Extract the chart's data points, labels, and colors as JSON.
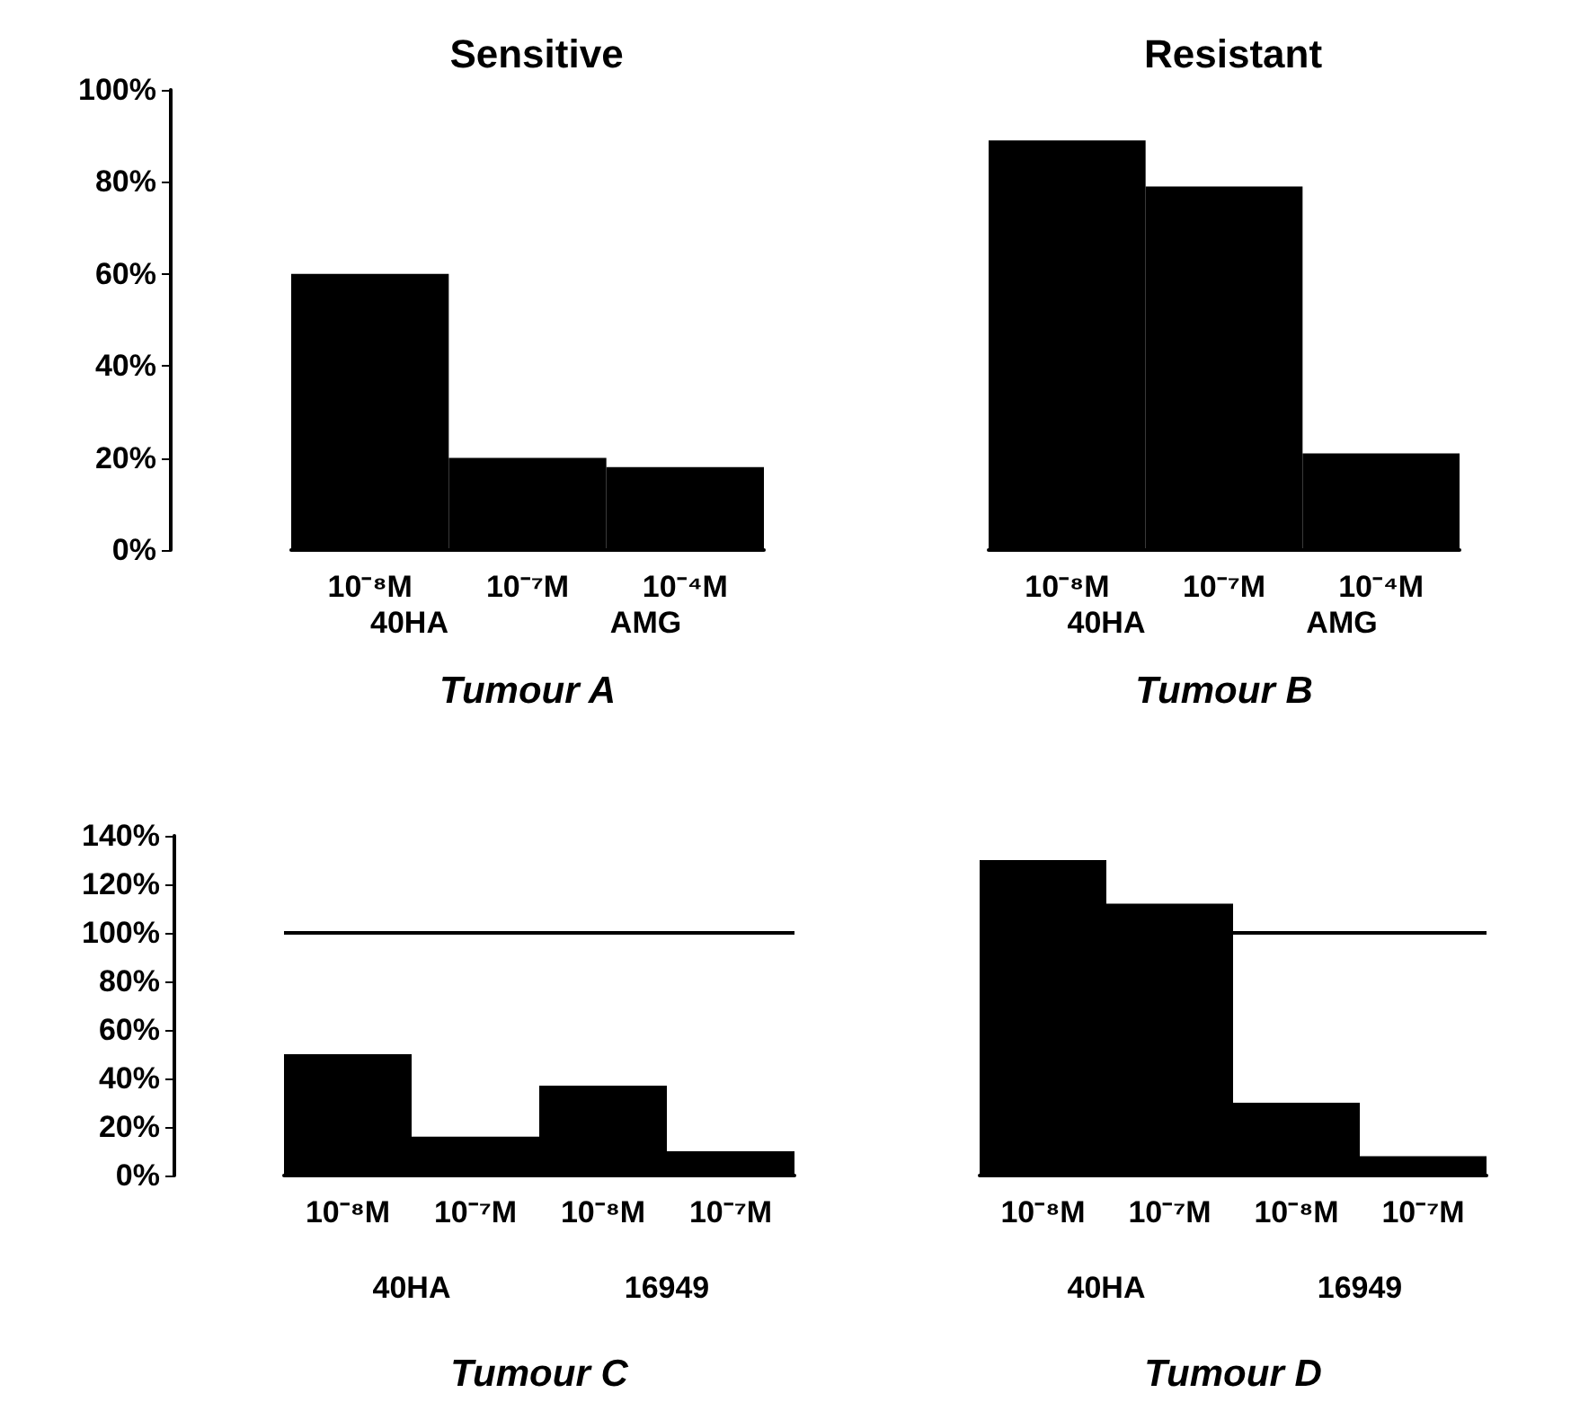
{
  "chart_data": [
    {
      "type": "bar",
      "title": "Sensitive",
      "xlabel": "Tumour A",
      "categories": [
        "10⁻⁸M",
        "10⁻⁷M",
        "10⁻⁴M"
      ],
      "values": [
        60,
        20,
        18
      ],
      "color": "#000000",
      "ylim": [
        0,
        100
      ],
      "yticks": [
        {
          "value": 0,
          "label": "0%"
        },
        {
          "value": 20,
          "label": "20%"
        },
        {
          "value": 40,
          "label": "40%"
        },
        {
          "value": 60,
          "label": "60%"
        },
        {
          "value": 80,
          "label": "80%"
        },
        {
          "value": 100,
          "label": "100%"
        }
      ],
      "annotations": [
        "40HA",
        "AMG"
      ]
    },
    {
      "type": "bar",
      "title": "Resistant",
      "xlabel": "Tumour B",
      "categories": [
        "10⁻⁸M",
        "10⁻⁷M",
        "10⁻⁴M"
      ],
      "values": [
        89,
        79,
        21
      ],
      "color": "#000000",
      "ylim": [
        0,
        100
      ],
      "tick_labels": "x",
      "annotations": [
        "40HA",
        "AMG"
      ]
    },
    {
      "type": "bar",
      "xlabel": "Tumour C",
      "categories": [
        "10⁻⁸M",
        "10⁻⁷M",
        "10⁻⁸M",
        "10⁻⁷M"
      ],
      "values": [
        50,
        16,
        37,
        10
      ],
      "color": "#000000",
      "ylim": [
        0,
        140
      ],
      "yticks": [
        {
          "value": 0,
          "label": "0%"
        },
        {
          "value": 20,
          "label": "20%"
        },
        {
          "value": 40,
          "label": "40%"
        },
        {
          "value": 60,
          "label": "60%"
        },
        {
          "value": 80,
          "label": "80%"
        },
        {
          "value": 100,
          "label": "100%"
        },
        {
          "value": 120,
          "label": "120%"
        },
        {
          "value": 140,
          "label": "140%"
        }
      ],
      "ref_lines": [
        {
          "axis": "y",
          "value": 100,
          "color": "#000000"
        }
      ],
      "annotations": [
        "40HA",
        "16949"
      ]
    },
    {
      "type": "bar",
      "xlabel": "Tumour D",
      "categories": [
        "10⁻⁸M",
        "10⁻⁷M",
        "10⁻⁸M",
        "10⁻⁷M"
      ],
      "values": [
        130,
        112,
        30,
        8
      ],
      "color": "#000000",
      "ylim": [
        0,
        140
      ],
      "tick_labels": "x",
      "ref_lines": [
        {
          "axis": "y",
          "value": 100,
          "color": "#000000"
        }
      ],
      "annotations": [
        "40HA",
        "16949"
      ]
    }
  ]
}
